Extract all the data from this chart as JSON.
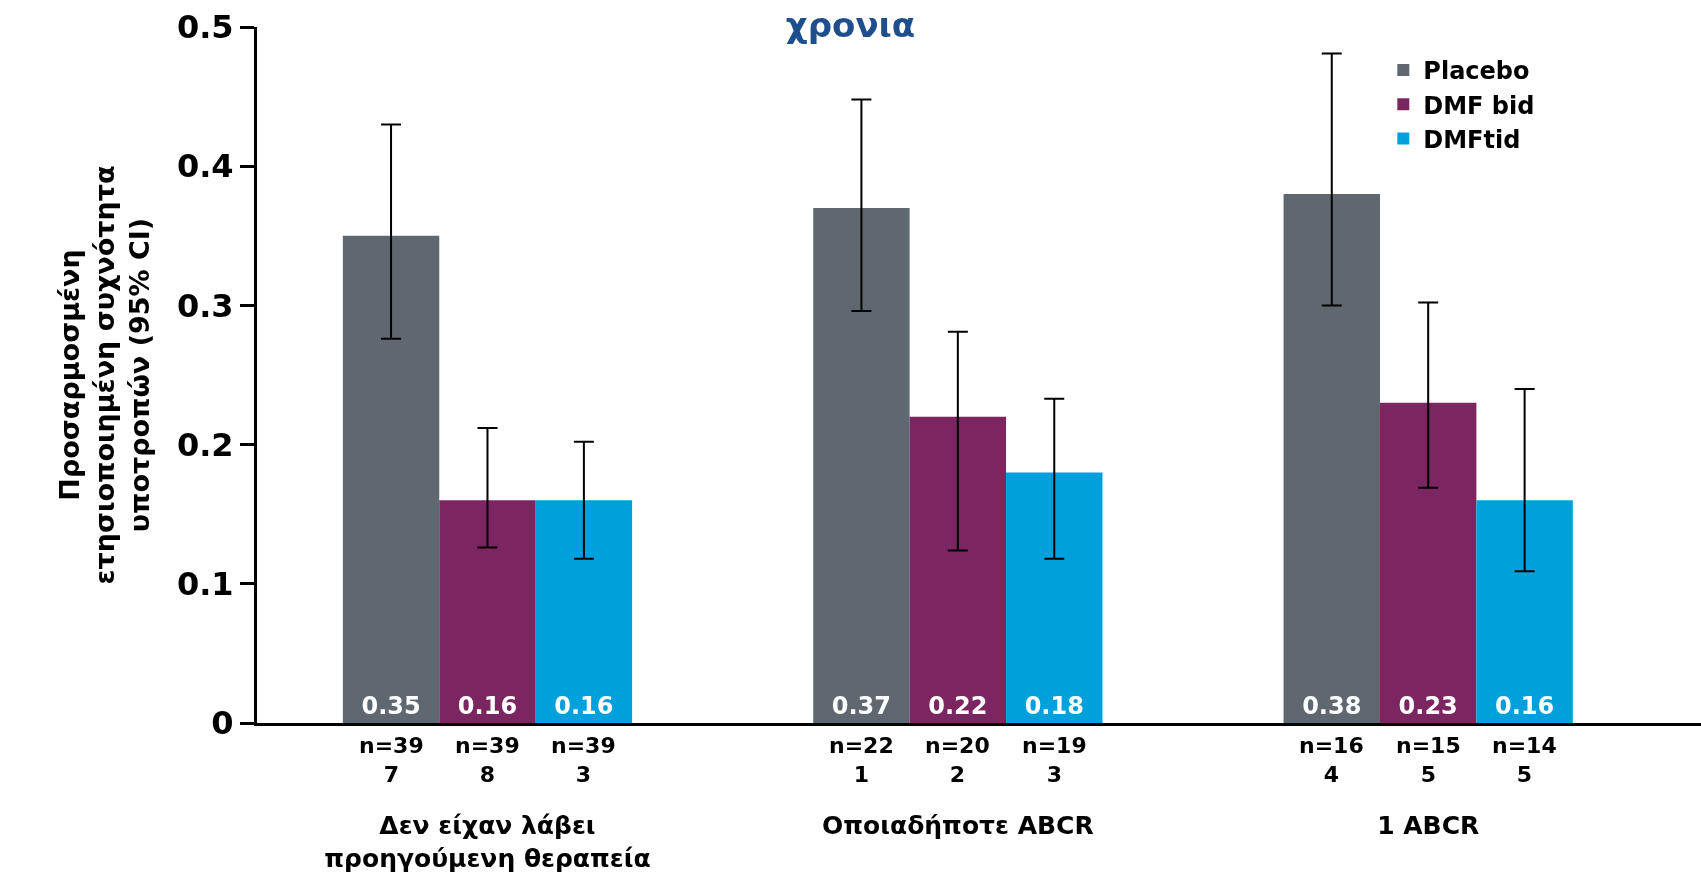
{
  "chart_data": {
    "type": "bar",
    "title": "χρονια",
    "ylabel": "Προσαρμοσμένη\nετησιοποιημένη συχνότητα\nυποτροπών (95% CI)",
    "categories": [
      "Δεν είχαν λάβει\nπροηγούμενη θεραπεία",
      "Οποιαδήποτε ABCR",
      "1 ABCR"
    ],
    "series": [
      {
        "name": "Placebo",
        "color": "#5f6870",
        "values": [
          0.35,
          0.37,
          0.38
        ],
        "errors": [
          [
            0.276,
            0.43
          ],
          [
            0.296,
            0.448
          ],
          [
            0.3,
            0.481
          ]
        ]
      },
      {
        "name": "DMF bid",
        "color": "#7b2660",
        "values": [
          0.16,
          0.22,
          0.23
        ],
        "errors": [
          [
            0.126,
            0.212
          ],
          [
            0.124,
            0.281
          ],
          [
            0.169,
            0.302
          ]
        ]
      },
      {
        "name": "DMFtid",
        "color": "#00a0dc",
        "values": [
          0.16,
          0.18,
          0.16
        ],
        "errors": [
          [
            0.118,
            0.202
          ],
          [
            0.118,
            0.233
          ],
          [
            0.109,
            0.24
          ]
        ]
      }
    ],
    "annotations": [
      "n=39\n7",
      "n=39\n8",
      "n=39\n3",
      "n=22\n1",
      "n=20\n2",
      "n=19\n3",
      "n=16\n4",
      "n=15\n5",
      "n=14\n5"
    ],
    "ylim": [
      0,
      0.5
    ],
    "yticks": [
      0,
      0.1,
      0.2,
      0.3,
      0.4,
      0.5
    ],
    "data_labels": true,
    "legend": "top right"
  }
}
